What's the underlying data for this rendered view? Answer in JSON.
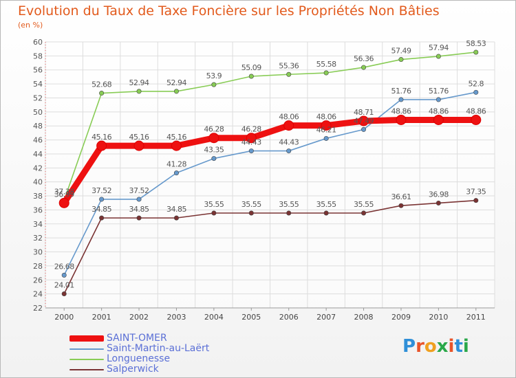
{
  "title": "Evolution du Taux de Taxe Foncière sur les Propriétés Non Bâties",
  "subtitle": "(en %)",
  "logo": {
    "text": "Proxiti",
    "colors": [
      "#2f8fd8",
      "#e8542a",
      "#f0a020",
      "#2aa84a",
      "#e8542a",
      "#2f8fd8",
      "#2aa84a"
    ]
  },
  "chart_data": {
    "type": "line",
    "x": [
      "2000",
      "2001",
      "2002",
      "2003",
      "2004",
      "2005",
      "2006",
      "2007",
      "2008",
      "2009",
      "2010",
      "2011"
    ],
    "ylim": [
      22,
      60
    ],
    "yticks": [
      22,
      24,
      26,
      28,
      30,
      32,
      34,
      36,
      38,
      40,
      42,
      44,
      46,
      48,
      50,
      52,
      54,
      56,
      58,
      60
    ],
    "grid": true,
    "legend_position": "bottom-left",
    "series": [
      {
        "name": "SAINT-OMER",
        "color": "#ee1111",
        "labels": [
          "36.99",
          "45.16",
          "45.16",
          "45.16",
          "46.28",
          "46.28",
          "48.06",
          "48.06",
          "48.71",
          "48.86",
          "48.86",
          "48.86"
        ],
        "values": [
          36.99,
          45.16,
          45.16,
          45.16,
          46.28,
          46.28,
          48.06,
          48.06,
          48.71,
          48.86,
          48.86,
          48.86
        ]
      },
      {
        "name": "Saint-Martin-au-Laërt",
        "color": "#6699cc",
        "labels": [
          "26.68",
          "37.52",
          "37.52",
          "41.28",
          "43.35",
          "44.43",
          "44.43",
          "46.21",
          "47.49",
          "51.76",
          "51.76",
          "52.8"
        ],
        "values": [
          26.68,
          37.52,
          37.52,
          41.28,
          43.35,
          44.43,
          44.43,
          46.21,
          47.49,
          51.76,
          51.76,
          52.8
        ]
      },
      {
        "name": "Longuenesse",
        "color": "#88cc55",
        "labels": [
          "37.38",
          "52.68",
          "52.94",
          "52.94",
          "53.9",
          "55.09",
          "55.36",
          "55.58",
          "56.36",
          "57.49",
          "57.94",
          "58.53"
        ],
        "values": [
          37.38,
          52.68,
          52.94,
          52.94,
          53.9,
          55.09,
          55.36,
          55.58,
          56.36,
          57.49,
          57.94,
          58.53
        ]
      },
      {
        "name": "Salperwick",
        "color": "#7a3333",
        "labels": [
          "24.01",
          "34.85",
          "34.85",
          "34.85",
          "35.55",
          "35.55",
          "35.55",
          "35.55",
          "35.55",
          "36.61",
          "36.98",
          "37.35"
        ],
        "values": [
          24.01,
          34.85,
          34.85,
          34.85,
          35.55,
          35.55,
          35.55,
          35.55,
          35.55,
          36.61,
          36.98,
          37.35
        ]
      }
    ]
  }
}
